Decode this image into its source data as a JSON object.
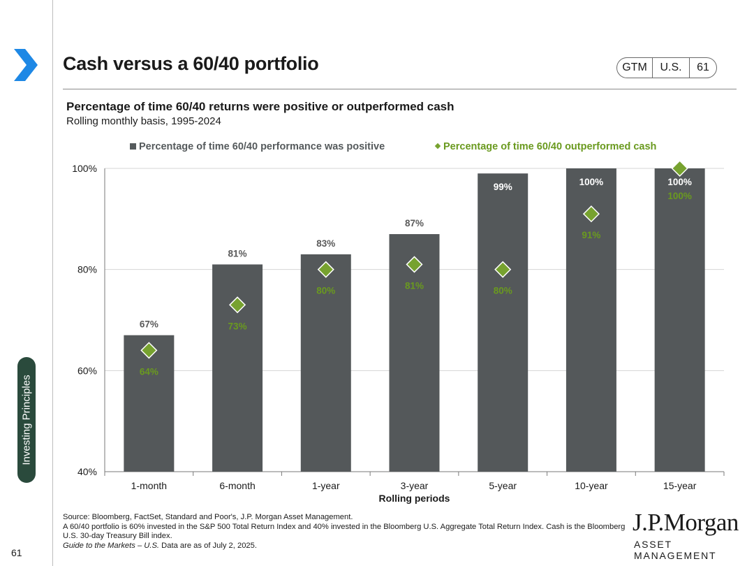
{
  "header": {
    "title": "Cash versus a 60/40 portfolio",
    "pill": [
      "GTM",
      "U.S.",
      "61"
    ]
  },
  "chart_header": {
    "subtitle": "Percentage of time 60/40 returns were positive or outperformed cash",
    "subsubtitle": "Rolling monthly basis, 1995-2024"
  },
  "chart_data": {
    "type": "bar",
    "categories": [
      "1-month",
      "6-month",
      "1-year",
      "3-year",
      "5-year",
      "10-year",
      "15-year"
    ],
    "series": [
      {
        "name": "Percentage of time 60/40 performance was positive",
        "marker": "bar",
        "values": [
          67,
          81,
          83,
          87,
          99,
          100,
          100
        ],
        "labels": [
          "67%",
          "81%",
          "83%",
          "87%",
          "99%",
          "100%",
          "100%"
        ]
      },
      {
        "name": "Percentage of time 60/40 outperformed cash",
        "marker": "diamond",
        "values": [
          64,
          73,
          80,
          81,
          80,
          91,
          100
        ],
        "labels": [
          "64%",
          "73%",
          "80%",
          "81%",
          "80%",
          "91%",
          "100%"
        ]
      }
    ],
    "y_ticks": [
      40,
      60,
      80,
      100
    ],
    "y_tick_labels": [
      "40%",
      "60%",
      "80%",
      "100%"
    ],
    "ylim": [
      40,
      100
    ],
    "xlabel": "Rolling periods",
    "ylabel": "",
    "legend_position": "top",
    "colors": {
      "bar": "#54585a",
      "diamond": "#77a22f",
      "label_green": "#6a9a1f",
      "bar_label_dark": "#5a5a5a"
    }
  },
  "sidebar": {
    "section_tab": "Investing Principles",
    "page_number": "61"
  },
  "footer": {
    "source": "Source: Bloomberg, FactSet, Standard and Poor's, J.P. Morgan Asset Management.",
    "note": "A 60/40 portfolio is 60% invested in the S&P 500 Total Return Index and 40% invested in the Bloomberg U.S. Aggregate Total Return Index. Cash is the Bloomberg U.S. 30-day Treasury Bill index.",
    "guide_italic": "Guide to the Markets – U.S.",
    "asof": " Data are as of July 2, 2025."
  },
  "logo": {
    "name": "J.P.Morgan",
    "sub": "ASSET MANAGEMENT"
  },
  "theme": {
    "accent_blue": "#1e88e5",
    "tab_green": "#2a4a3c"
  }
}
